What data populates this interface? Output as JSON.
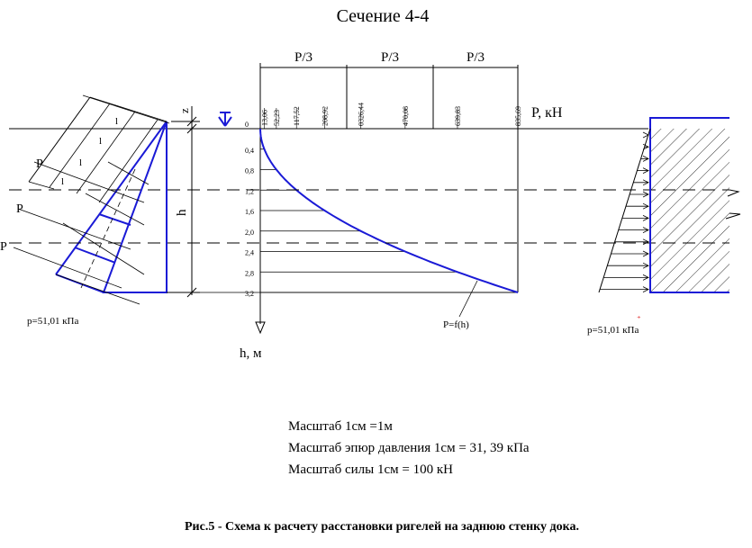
{
  "title": "Сечение 4-4",
  "axis": {
    "force_label": "P, кН",
    "depth_label": "h, м",
    "curve_label": "P=f(h)",
    "h_label": "h",
    "z_label": "z"
  },
  "segments": [
    "P/3",
    "P/3",
    "P/3"
  ],
  "force_ticks": [
    "13,06",
    "52,23",
    "117,52",
    "208,92",
    "0326,44",
    "470,08",
    "639,83",
    "835,69"
  ],
  "depth_ticks": [
    "0",
    "0,4",
    "0,8",
    "1,2",
    "1,6",
    "2,0",
    "2,4",
    "2,8",
    "3,2"
  ],
  "left_diagram": {
    "pressure_label": "p=51,01 кПа",
    "p_labels": [
      "P",
      "P",
      "P"
    ],
    "l_labels": [
      "l",
      "l",
      "l",
      "l"
    ]
  },
  "right_diagram": {
    "pressure_label": "p=51,01 кПа"
  },
  "notes": [
    "Масштаб  1см =1м",
    "Масштаб эпюр давления  1см = 31, 39 кПа",
    "Масштаб силы   1см = 100 кН"
  ],
  "caption": "Рис.5 - Схема к расчету расстановки ригелей на заднюю стенку дока."
}
